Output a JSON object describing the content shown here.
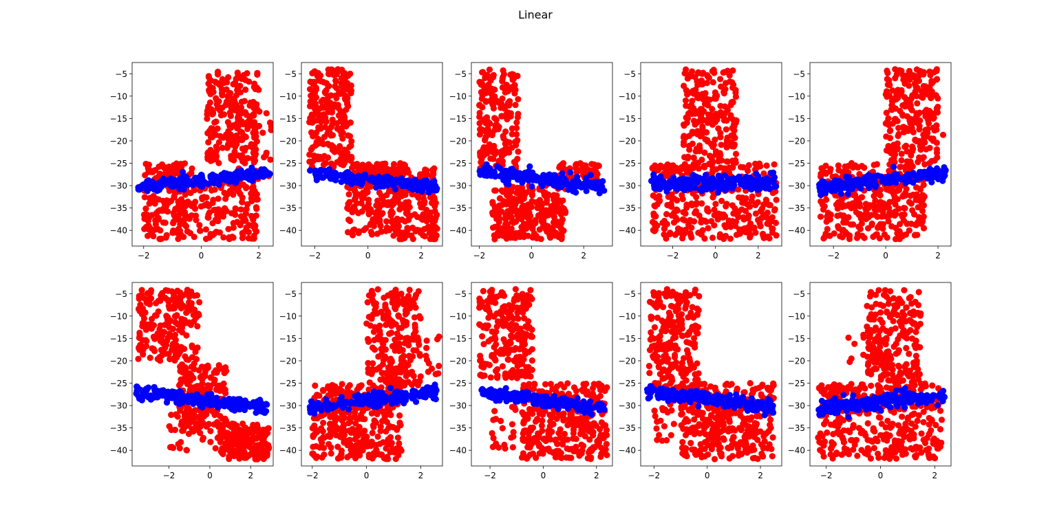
{
  "figure": {
    "suptitle": "Linear",
    "colors": {
      "actual": "#ff0000",
      "predicted": "#0000ff",
      "axes": "#000000",
      "background": "#ffffff"
    }
  },
  "chart_data": [
    {
      "type": "scatter",
      "panel": "row 1, col 1",
      "xlim": [
        -2.4,
        2.5
      ],
      "ylim": [
        -43.5,
        -2.5
      ],
      "xticks": [
        -2,
        0,
        2
      ],
      "yticks": [
        -5,
        -10,
        -15,
        -20,
        -25,
        -30,
        -35,
        -40
      ],
      "grid": false,
      "legend": "none",
      "series": [
        {
          "color": "#ff0000",
          "clusters": [
            {
              "x": [
                -2.0,
                -0.2
              ],
              "y": [
                -42,
                -25
              ],
              "n": 200
            },
            {
              "x": [
                -0.2,
                2.0
              ],
              "y": [
                -42,
                -28
              ],
              "n": 150
            },
            {
              "x": [
                0.2,
                2.0
              ],
              "y": [
                -25,
                -4
              ],
              "n": 220
            },
            {
              "x": [
                1.2,
                2.5
              ],
              "y": [
                -28,
                -13
              ],
              "n": 40
            }
          ]
        },
        {
          "color": "#0000ff",
          "line": {
            "x": [
              -2.2,
              2.4
            ],
            "y": [
              -30.3,
              -27.3
            ]
          },
          "spread": 1.3,
          "n": 200
        }
      ]
    },
    {
      "type": "scatter",
      "panel": "row 1, col 2",
      "xlim": [
        -2.5,
        2.8
      ],
      "ylim": [
        -43.5,
        -2.5
      ],
      "xticks": [
        -2,
        0,
        2
      ],
      "yticks": [
        -5,
        -10,
        -15,
        -20,
        -25,
        -30,
        -35,
        -40
      ],
      "grid": false,
      "legend": "none",
      "series": [
        {
          "color": "#ff0000",
          "clusters": [
            {
              "x": [
                -2.2,
                -0.6
              ],
              "y": [
                -26,
                -4
              ],
              "n": 240
            },
            {
              "x": [
                -0.8,
                2.6
              ],
              "y": [
                -42,
                -26
              ],
              "n": 330
            },
            {
              "x": [
                -0.6,
                1.5
              ],
              "y": [
                -28,
                -25
              ],
              "n": 60
            }
          ]
        },
        {
          "color": "#0000ff",
          "line": {
            "x": [
              -2.2,
              2.6
            ],
            "y": [
              -27.0,
              -30.5
            ]
          },
          "spread": 1.2,
          "n": 200
        }
      ]
    },
    {
      "type": "scatter",
      "panel": "row 1, col 3",
      "xlim": [
        -2.3,
        3.1
      ],
      "ylim": [
        -43.5,
        -2.5
      ],
      "xticks": [
        -2,
        0,
        2
      ],
      "yticks": [
        -5,
        -10,
        -15,
        -20,
        -25,
        -30,
        -35,
        -40
      ],
      "grid": false,
      "legend": "none",
      "series": [
        {
          "color": "#ff0000",
          "clusters": [
            {
              "x": [
                -2.0,
                -0.5
              ],
              "y": [
                -27,
                -4
              ],
              "n": 200
            },
            {
              "x": [
                -1.5,
                1.3
              ],
              "y": [
                -42,
                -30
              ],
              "n": 260
            },
            {
              "x": [
                1.0,
                2.6
              ],
              "y": [
                -30,
                -25
              ],
              "n": 90
            }
          ]
        },
        {
          "color": "#0000ff",
          "line": {
            "x": [
              -2.0,
              2.8
            ],
            "y": [
              -27.0,
              -30.2
            ]
          },
          "spread": 1.4,
          "n": 200
        }
      ]
    },
    {
      "type": "scatter",
      "panel": "row 1, col 4",
      "xlim": [
        -3.5,
        3.1
      ],
      "ylim": [
        -43.5,
        -2.5
      ],
      "xticks": [
        -2,
        0,
        2
      ],
      "yticks": [
        -5,
        -10,
        -15,
        -20,
        -25,
        -30,
        -35,
        -40
      ],
      "grid": false,
      "legend": "none",
      "series": [
        {
          "color": "#ff0000",
          "clusters": [
            {
              "x": [
                -1.5,
                1.0
              ],
              "y": [
                -26,
                -4
              ],
              "n": 220
            },
            {
              "x": [
                -3.0,
                2.9
              ],
              "y": [
                -42,
                -25
              ],
              "n": 350
            }
          ]
        },
        {
          "color": "#0000ff",
          "line": {
            "x": [
              -3.0,
              2.9
            ],
            "y": [
              -29.6,
              -29.4
            ]
          },
          "spread": 1.6,
          "n": 220
        }
      ]
    },
    {
      "type": "scatter",
      "panel": "row 1, col 5",
      "xlim": [
        -2.9,
        2.5
      ],
      "ylim": [
        -43.5,
        -2.5
      ],
      "xticks": [
        -2,
        0,
        2
      ],
      "yticks": [
        -5,
        -10,
        -15,
        -20,
        -25,
        -30,
        -35,
        -40
      ],
      "grid": false,
      "legend": "none",
      "series": [
        {
          "color": "#ff0000",
          "clusters": [
            {
              "x": [
                -2.5,
                1.5
              ],
              "y": [
                -42,
                -25
              ],
              "n": 350
            },
            {
              "x": [
                0.0,
                2.0
              ],
              "y": [
                -25,
                -4
              ],
              "n": 220
            },
            {
              "x": [
                1.5,
                2.4
              ],
              "y": [
                -20,
                -13
              ],
              "n": 10
            }
          ]
        },
        {
          "color": "#0000ff",
          "line": {
            "x": [
              -2.6,
              2.3
            ],
            "y": [
              -30.5,
              -27.2
            ]
          },
          "spread": 1.4,
          "n": 200
        }
      ]
    },
    {
      "type": "scatter",
      "panel": "row 2, col 1",
      "xlim": [
        -3.8,
        3.1
      ],
      "ylim": [
        -43.5,
        -2.5
      ],
      "xticks": [
        -2,
        0,
        2
      ],
      "yticks": [
        -5,
        -10,
        -15,
        -20,
        -25,
        -30,
        -35,
        -40
      ],
      "grid": false,
      "legend": "none",
      "series": [
        {
          "color": "#ff0000",
          "clusters": [
            {
              "x": [
                -3.5,
                -0.5
              ],
              "y": [
                -20,
                -4
              ],
              "n": 200
            },
            {
              "x": [
                -1.5,
                0.8
              ],
              "y": [
                -36,
                -20
              ],
              "n": 200
            },
            {
              "x": [
                0.5,
                2.9
              ],
              "y": [
                -42,
                -34
              ],
              "n": 200
            },
            {
              "x": [
                -2.0,
                0.5
              ],
              "y": [
                -40,
                -30
              ],
              "n": 40
            }
          ]
        },
        {
          "color": "#0000ff",
          "line": {
            "x": [
              -3.6,
              2.8
            ],
            "y": [
              -26.8,
              -30.6
            ]
          },
          "spread": 1.3,
          "n": 220
        }
      ]
    },
    {
      "type": "scatter",
      "panel": "row 2, col 2",
      "xlim": [
        -2.4,
        2.8
      ],
      "ylim": [
        -43.5,
        -2.5
      ],
      "xticks": [
        -2,
        0,
        2
      ],
      "yticks": [
        -5,
        -10,
        -15,
        -20,
        -25,
        -30,
        -35,
        -40
      ],
      "grid": false,
      "legend": "none",
      "series": [
        {
          "color": "#ff0000",
          "clusters": [
            {
              "x": [
                -2.0,
                1.3
              ],
              "y": [
                -42,
                -25
              ],
              "n": 330
            },
            {
              "x": [
                0.0,
                2.0
              ],
              "y": [
                -26,
                -4
              ],
              "n": 230
            },
            {
              "x": [
                2.0,
                2.7
              ],
              "y": [
                -27,
                -14
              ],
              "n": 12
            }
          ]
        },
        {
          "color": "#0000ff",
          "line": {
            "x": [
              -2.1,
              2.6
            ],
            "y": [
              -30.5,
              -26.9
            ]
          },
          "spread": 1.3,
          "n": 200
        }
      ]
    },
    {
      "type": "scatter",
      "panel": "row 2, col 3",
      "xlim": [
        -2.7,
        2.6
      ],
      "ylim": [
        -43.5,
        -2.5
      ],
      "xticks": [
        -2,
        0,
        2
      ],
      "yticks": [
        -5,
        -10,
        -15,
        -20,
        -25,
        -30,
        -35,
        -40
      ],
      "grid": false,
      "legend": "none",
      "series": [
        {
          "color": "#ff0000",
          "clusters": [
            {
              "x": [
                -2.4,
                -0.4
              ],
              "y": [
                -24,
                -4
              ],
              "n": 230
            },
            {
              "x": [
                -0.8,
                2.4
              ],
              "y": [
                -42,
                -25
              ],
              "n": 330
            },
            {
              "x": [
                -2.0,
                -1.0
              ],
              "y": [
                -40,
                -30
              ],
              "n": 20
            }
          ]
        },
        {
          "color": "#0000ff",
          "line": {
            "x": [
              -2.4,
              2.3
            ],
            "y": [
              -26.9,
              -30.8
            ]
          },
          "spread": 1.2,
          "n": 200
        }
      ]
    },
    {
      "type": "scatter",
      "panel": "row 2, col 4",
      "xlim": [
        -2.5,
        2.8
      ],
      "ylim": [
        -43.5,
        -2.5
      ],
      "xticks": [
        -2,
        0,
        2
      ],
      "yticks": [
        -5,
        -10,
        -15,
        -20,
        -25,
        -30,
        -35,
        -40
      ],
      "grid": false,
      "legend": "none",
      "series": [
        {
          "color": "#ff0000",
          "clusters": [
            {
              "x": [
                -2.2,
                -0.3
              ],
              "y": [
                -27,
                -4
              ],
              "n": 240
            },
            {
              "x": [
                -1.0,
                2.5
              ],
              "y": [
                -42,
                -25
              ],
              "n": 330
            },
            {
              "x": [
                -2.0,
                -1.2
              ],
              "y": [
                -38,
                -28
              ],
              "n": 20
            }
          ]
        },
        {
          "color": "#0000ff",
          "line": {
            "x": [
              -2.3,
              2.5
            ],
            "y": [
              -26.9,
              -30.3
            ]
          },
          "spread": 1.3,
          "n": 200
        }
      ]
    },
    {
      "type": "scatter",
      "panel": "row 2, col 5",
      "xlim": [
        -2.6,
        2.6
      ],
      "ylim": [
        -43.5,
        -2.5
      ],
      "xticks": [
        -2,
        0,
        2
      ],
      "yticks": [
        -5,
        -10,
        -15,
        -20,
        -25,
        -30,
        -35,
        -40
      ],
      "grid": false,
      "legend": "none",
      "series": [
        {
          "color": "#ff0000",
          "clusters": [
            {
              "x": [
                -2.3,
                2.3
              ],
              "y": [
                -42,
                -25
              ],
              "n": 350
            },
            {
              "x": [
                -0.5,
                1.5
              ],
              "y": [
                -25,
                -4
              ],
              "n": 220
            },
            {
              "x": [
                -1.2,
                -0.3
              ],
              "y": [
                -22,
                -13
              ],
              "n": 10
            }
          ]
        },
        {
          "color": "#0000ff",
          "line": {
            "x": [
              -2.3,
              2.4
            ],
            "y": [
              -30.5,
              -27.6
            ]
          },
          "spread": 1.5,
          "n": 220
        }
      ]
    }
  ]
}
